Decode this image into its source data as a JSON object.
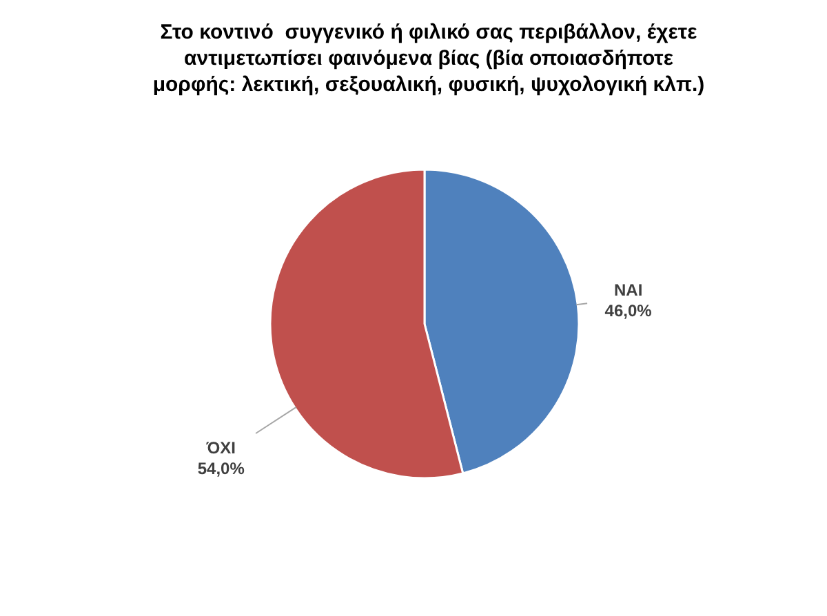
{
  "chart_data": {
    "type": "pie",
    "title": "Στο κοντινό  συγγενικό ή φιλικό σας περιβάλλον, έχετε αντιμετωπίσει φαινόμενα βίας (βία οποιασδήποτε μορφής: λεκτική, σεξουαλική, φυσική, ψυχολογική κλπ.)",
    "categories": [
      "ΝΑΙ",
      "ΌΧΙ"
    ],
    "values": [
      46.0,
      54.0
    ],
    "colors": [
      "#4f81bd",
      "#c0504d"
    ],
    "value_labels": [
      "46,0%",
      "54,0%"
    ]
  }
}
